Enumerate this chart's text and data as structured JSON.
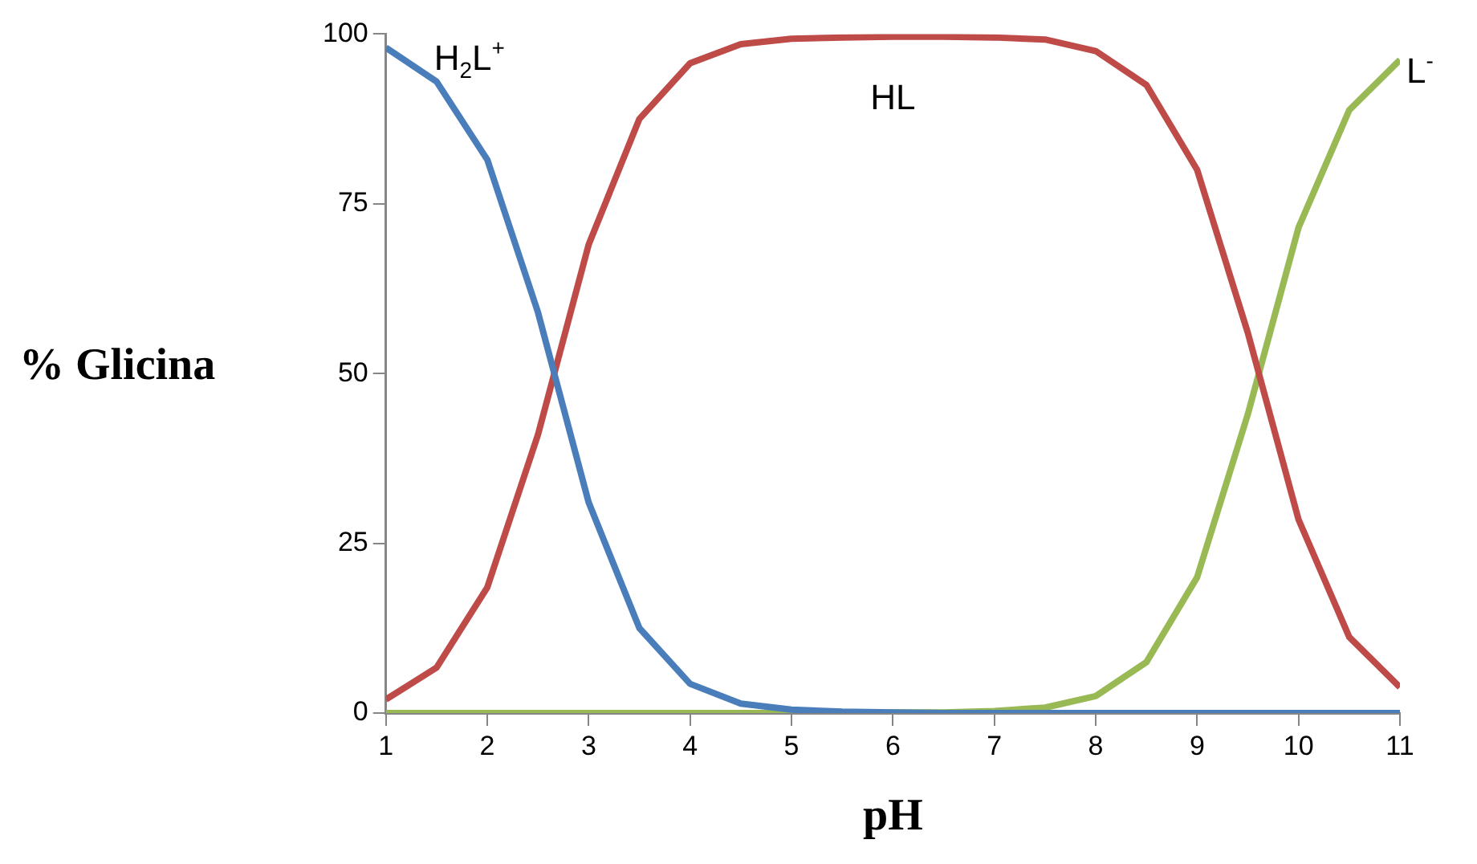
{
  "chart_data": {
    "type": "line",
    "xlabel": "pH",
    "ylabel": "% Glicina",
    "x": [
      1,
      1.5,
      2,
      2.5,
      3,
      3.5,
      4,
      4.5,
      5,
      5.5,
      6,
      6.5,
      7,
      7.5,
      8,
      8.5,
      9,
      9.5,
      10,
      10.5,
      11
    ],
    "xlim": [
      1,
      11
    ],
    "xticks": [
      1,
      2,
      3,
      4,
      5,
      6,
      7,
      8,
      9,
      10,
      11
    ],
    "ylim": [
      0,
      100
    ],
    "yticks": [
      0,
      25,
      50,
      75,
      100
    ],
    "legend": false,
    "marker": "none",
    "line_style": "solid",
    "series": [
      {
        "name": "H$_{2}$L$^{+}$",
        "color": "#4a7ebb",
        "values": [
          98,
          93,
          81.5,
          59,
          31,
          12.5,
          4.3,
          1.4,
          0.5,
          0.2,
          0.1,
          0,
          0,
          0,
          0,
          0,
          0,
          0,
          0,
          0,
          0
        ]
      },
      {
        "name": "HL",
        "color": "#be4b48",
        "values": [
          2,
          6.7,
          18.5,
          41,
          69,
          87.5,
          95.7,
          98.5,
          99.3,
          99.5,
          99.6,
          99.6,
          99.5,
          99.2,
          97.5,
          92.5,
          80,
          56,
          28.5,
          11.2,
          3.8
        ]
      },
      {
        "name": "L$^{-}$",
        "color": "#98b954",
        "values": [
          0,
          0,
          0,
          0,
          0,
          0,
          0,
          0,
          0,
          0,
          0.1,
          0.1,
          0.3,
          0.8,
          2.5,
          7.5,
          20,
          44,
          71.5,
          88.8,
          96.2
        ]
      }
    ]
  }
}
